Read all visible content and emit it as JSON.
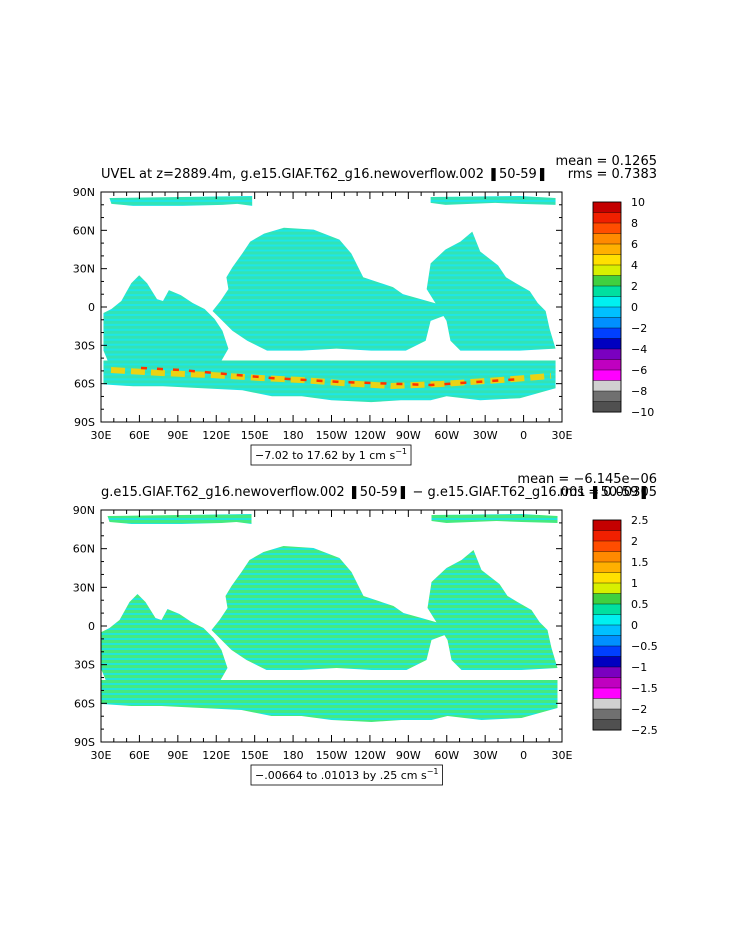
{
  "panels": [
    {
      "title": "UVEL at z=2889.4m, g.e15.GIAF.T62_g16.newoverflow.002 ❚50-59❚",
      "mean_text": "mean = 0.1265",
      "rms_text": "rms = 0.7383",
      "range_text": "−7.02 to 17.62 by 1 cm s",
      "range_sup": "−1",
      "colorbar": {
        "labels": [
          "10",
          "8",
          "6",
          "4",
          "2",
          "0",
          "−2",
          "−4",
          "−6",
          "−8",
          "−10"
        ],
        "colors": [
          "#c40000",
          "#f02000",
          "#ff4d00",
          "#ff8a00",
          "#ffb000",
          "#ffe000",
          "#d8f000",
          "#40d040",
          "#00e0a0",
          "#00f0f0",
          "#00c0ff",
          "#0090ff",
          "#0040ff",
          "#0000c0",
          "#7a00c0",
          "#c000c0",
          "#ff00ff",
          "#d0d0d0",
          "#707070",
          "#505050"
        ]
      }
    },
    {
      "title": "g.e15.GIAF.T62_g16.newoverflow.002 ❚50-59❚ − g.e15.GIAF.T62_g16.001 ❚50-59❚",
      "mean_text": "mean = −6.145e−06",
      "rms_text": "rms = 0.00305",
      "range_text": "−.00664 to .01013 by .25 cm s",
      "range_sup": "−1",
      "colorbar": {
        "labels": [
          "2.5",
          "2",
          "1.5",
          "1",
          "0.5",
          "0",
          "−0.5",
          "−1",
          "−1.5",
          "−2",
          "−2.5"
        ],
        "colors": [
          "#c40000",
          "#f02000",
          "#ff4d00",
          "#ff8a00",
          "#ffb000",
          "#ffe000",
          "#d8f000",
          "#40d040",
          "#00e0a0",
          "#00f0f0",
          "#00c0ff",
          "#0090ff",
          "#0040ff",
          "#0000c0",
          "#7a00c0",
          "#c000c0",
          "#ff00ff",
          "#d0d0d0",
          "#707070",
          "#505050"
        ]
      }
    }
  ],
  "lat_labels": [
    "90N",
    "60N",
    "30N",
    "0",
    "30S",
    "60S",
    "90S"
  ],
  "lon_labels": [
    "30E",
    "60E",
    "90E",
    "120E",
    "150E",
    "180",
    "150W",
    "120W",
    "90W",
    "60W",
    "30W",
    "0",
    "30E"
  ],
  "colors": {
    "ocean_main": "#33e0b0",
    "ocean_alt": "#22e0e0",
    "ocean_diff": "#40e880",
    "acc_warm": "#ffd000",
    "acc_hot": "#ff3000"
  }
}
